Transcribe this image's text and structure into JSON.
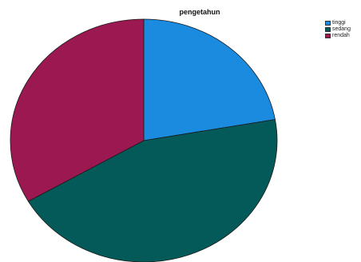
{
  "chart_data": {
    "type": "pie",
    "title": "pengetahun",
    "categories": [
      "tinggi",
      "sedang",
      "rendah"
    ],
    "values": [
      22.2,
      44.4,
      33.3
    ],
    "colors": [
      "#1b8be0",
      "#045a59",
      "#9b1850"
    ],
    "start_angle_deg": 0,
    "direction": "clockwise",
    "legend_position": "top-right"
  }
}
